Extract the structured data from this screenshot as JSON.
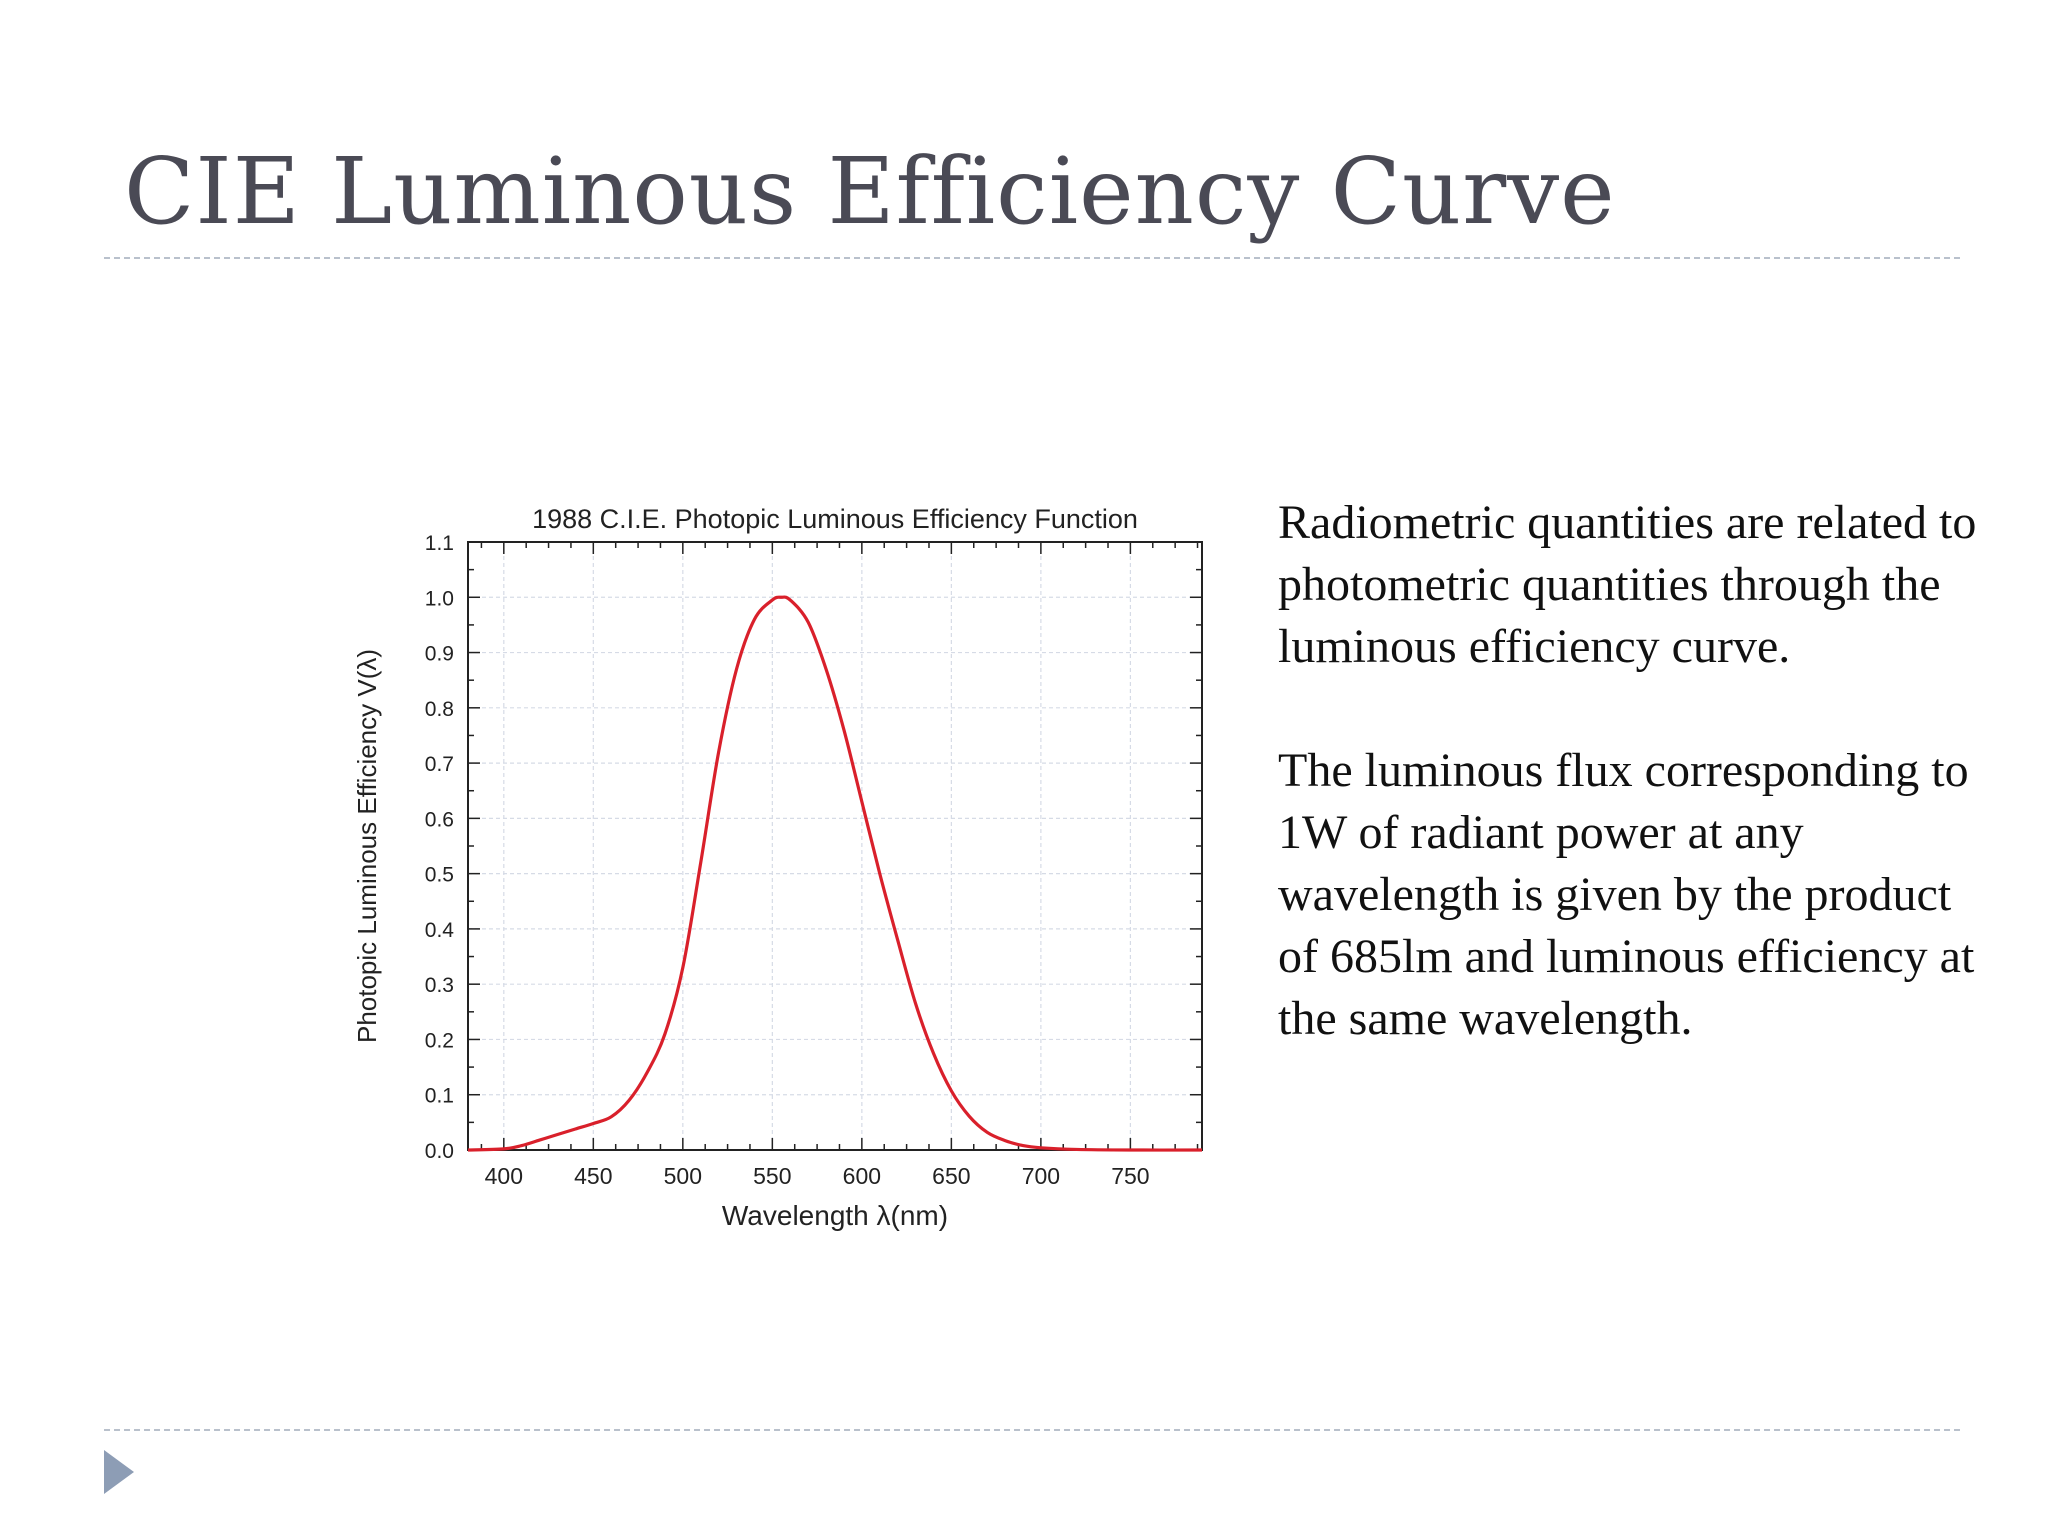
{
  "slide": {
    "title": "CIE Luminous Efficiency Curve",
    "paragraphs": [
      "Radiometric quantities are related to photometric quantities through the luminous efficiency curve.",
      "The luminous flux corresponding to 1W of radiant power at any wavelength is given by the product of 685lm and luminous efficiency at the same wavelength."
    ],
    "accent_color": "#8d9db5"
  },
  "chart_data": {
    "type": "line",
    "title": "1988 C.I.E. Photopic Luminous Efficiency Function",
    "xlabel": "Wavelength λ(nm)",
    "ylabel": "Photopic Luminous Efficiency V(λ)",
    "xlim": [
      380,
      790
    ],
    "ylim": [
      0,
      1.1
    ],
    "x_ticks": [
      400,
      450,
      500,
      550,
      600,
      650,
      700,
      750
    ],
    "y_ticks": [
      0.0,
      0.1,
      0.2,
      0.3,
      0.4,
      0.5,
      0.6,
      0.7,
      0.8,
      0.9,
      1.0,
      1.1
    ],
    "grid": true,
    "line_color": "#d9202b",
    "series": [
      {
        "x": [
          380,
          400,
          410,
          420,
          430,
          440,
          450,
          460,
          470,
          480,
          490,
          500,
          510,
          520,
          530,
          540,
          550,
          555,
          560,
          570,
          580,
          590,
          600,
          610,
          620,
          630,
          640,
          650,
          660,
          670,
          680,
          690,
          700,
          720,
          750,
          790
        ],
        "y": [
          0.0,
          0.002,
          0.008,
          0.018,
          0.028,
          0.038,
          0.048,
          0.06,
          0.09,
          0.14,
          0.21,
          0.33,
          0.52,
          0.72,
          0.87,
          0.96,
          0.995,
          1.0,
          0.995,
          0.955,
          0.87,
          0.76,
          0.63,
          0.5,
          0.38,
          0.265,
          0.175,
          0.107,
          0.061,
          0.032,
          0.017,
          0.008,
          0.004,
          0.001,
          0.0,
          0.0
        ]
      }
    ]
  }
}
